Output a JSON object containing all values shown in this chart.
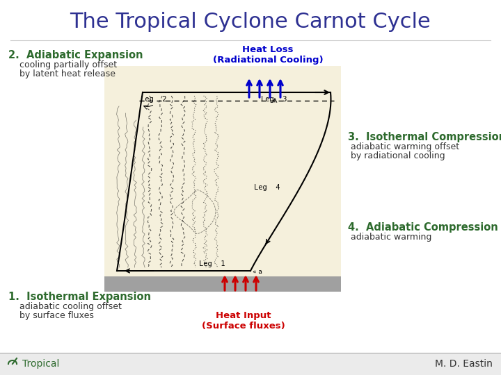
{
  "title": "The Tropical Cyclone Carnot Cycle",
  "title_color": "#2E3192",
  "title_fontsize": 22,
  "bg_color": "#FFFFFF",
  "diagram_bg": "#F5F0DC",
  "label2_bold": "2.  Adiabatic Expansion",
  "label2_sub": "cooling partially offset\nby latent heat release",
  "label1_bold": "1.  Isothermal Expansion",
  "label1_sub": "adiabatic cooling offset\nby surface fluxes",
  "label3_bold": "3.  Isothermal Compression",
  "label3_sub": "adiabatic warming offset\nby radiational cooling",
  "label4_bold": "4.  Adiabatic Compression",
  "label4_sub": "adiabatic warming",
  "heat_loss_text": "Heat Loss\n(Radiational Cooling)",
  "heat_input_text": "Heat Input\n(Surface fluxes)",
  "green_color": "#2D6A2D",
  "blue_color": "#0000CC",
  "red_color": "#CC0000",
  "dark_color": "#333333",
  "footer_left": "Tropical",
  "footer_right": "M. D. Eastin",
  "footer_color": "#2D6A2D"
}
